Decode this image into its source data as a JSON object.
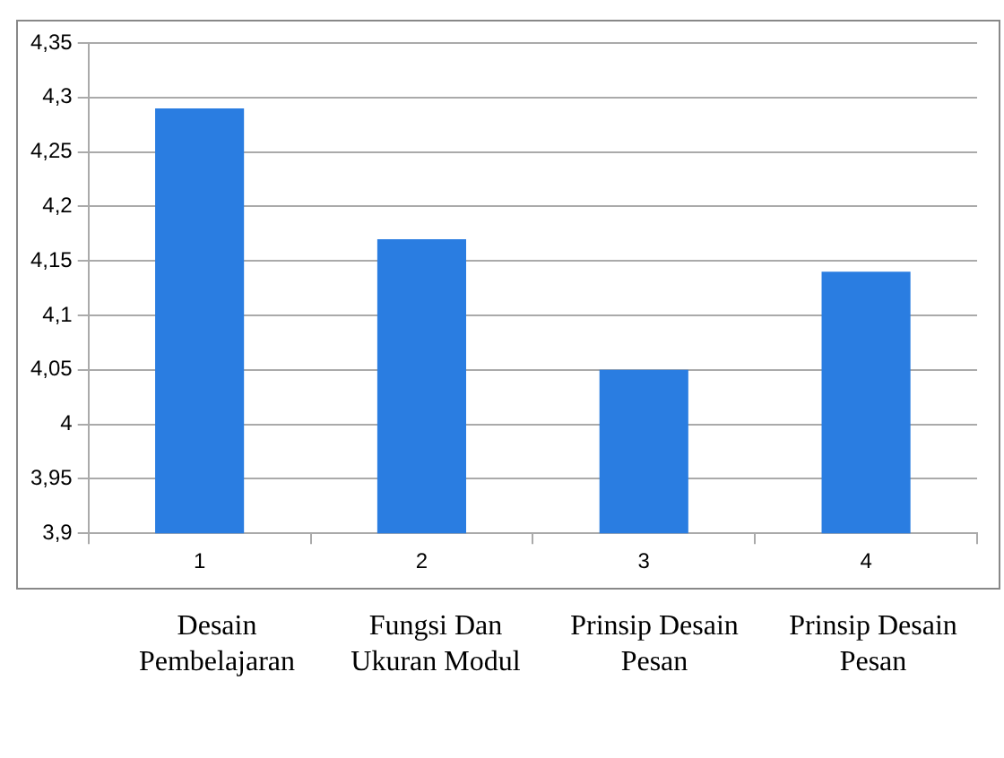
{
  "chart_data": {
    "type": "bar",
    "categories": [
      "1",
      "2",
      "3",
      "4"
    ],
    "values": [
      4.29,
      4.17,
      4.05,
      4.14
    ],
    "color": "#2a7de1",
    "ylim": [
      3.9,
      4.35
    ],
    "yticks": [
      {
        "value": 3.9,
        "label": "3,9"
      },
      {
        "value": 3.95,
        "label": "3,95"
      },
      {
        "value": 4,
        "label": "4"
      },
      {
        "value": 4.05,
        "label": "4,05"
      },
      {
        "value": 4.1,
        "label": "4,1"
      },
      {
        "value": 4.15,
        "label": "4,15"
      },
      {
        "value": 4.2,
        "label": "4,2"
      },
      {
        "value": 4.25,
        "label": "4,25"
      },
      {
        "value": 4.3,
        "label": "4,3"
      },
      {
        "value": 4.35,
        "label": "4,35"
      }
    ],
    "grid": "y",
    "legend": false,
    "annotations": [
      "Desain Pembelajaran",
      "Fungsi Dan Ukuran Modul",
      "Prinsip Desain Pesan",
      "Prinsip Desain Pesan"
    ]
  }
}
